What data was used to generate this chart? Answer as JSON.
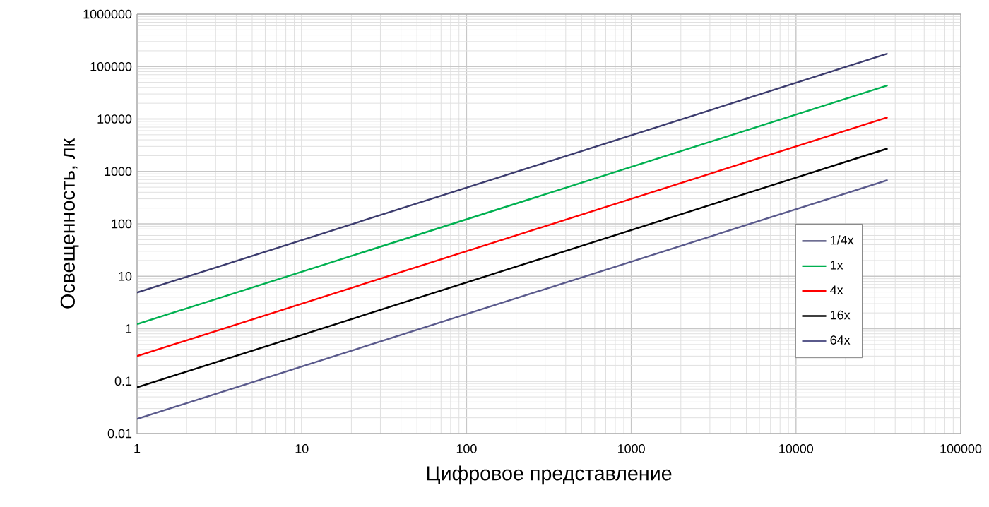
{
  "chart_data": {
    "type": "line",
    "xlabel": "Цифровое представление",
    "ylabel": "Освещенность, лк",
    "x": [
      1,
      36000
    ],
    "series": [
      {
        "name": "1/4x",
        "color": "#3c3c6e",
        "values": [
          4.9,
          176400
        ]
      },
      {
        "name": "1x",
        "color": "#00b050",
        "values": [
          1.22,
          43900
        ]
      },
      {
        "name": "4x",
        "color": "#ff0000",
        "values": [
          0.3,
          10800
        ]
      },
      {
        "name": "16x",
        "color": "#000000",
        "values": [
          0.076,
          2740
        ]
      },
      {
        "name": "64x",
        "color": "#5a5a8c",
        "values": [
          0.019,
          684
        ]
      }
    ],
    "log": "xy",
    "grid": true,
    "legend": "right",
    "marker": "none",
    "line_style": "solid",
    "xlim": [
      1,
      100000
    ],
    "xticks": [
      1,
      10,
      100,
      1000,
      10000,
      100000
    ],
    "ylim": [
      0.01,
      1000000
    ],
    "yticks": [
      0.01,
      0.1,
      1,
      10,
      100,
      1000,
      10000,
      100000,
      1000000
    ]
  }
}
